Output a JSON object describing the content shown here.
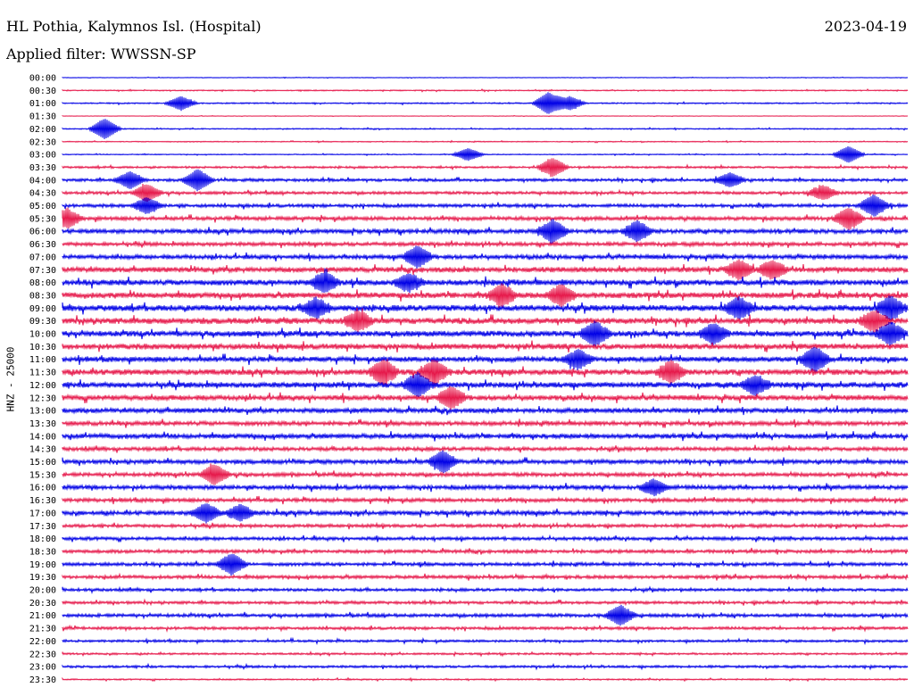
{
  "header": {
    "station": "HL Pothia, Kalymnos Isl. (Hospital)",
    "filter": "Applied filter: WWSSN-SP",
    "date": "2023-04-19"
  },
  "colors": {
    "odd_trace": "#0000e6",
    "even_trace": "#e6194b"
  },
  "chart_data": {
    "type": "line",
    "title": "HL Pothia, Kalymnos Isl. (Hospital)",
    "subtitle": "Applied filter: WWSSN-SP",
    "date": "2023-04-19",
    "ylabel": "HNZ - 25000",
    "xlabel": "",
    "grid": false,
    "row_labels": [
      "00:00",
      "00:30",
      "01:00",
      "01:30",
      "02:00",
      "02:30",
      "03:00",
      "03:30",
      "04:00",
      "04:30",
      "05:00",
      "05:30",
      "06:00",
      "06:30",
      "07:00",
      "07:30",
      "08:00",
      "08:30",
      "09:00",
      "09:30",
      "10:00",
      "10:30",
      "11:00",
      "11:30",
      "12:00",
      "12:30",
      "13:00",
      "13:30",
      "14:00",
      "14:30",
      "15:00",
      "15:30",
      "16:00",
      "16:30",
      "17:00",
      "17:30",
      "18:00",
      "18:30",
      "19:00",
      "19:30",
      "20:00",
      "20:30",
      "21:00",
      "21:30",
      "22:00",
      "22:30",
      "23:00",
      "23:30"
    ],
    "series_colors": [
      "#0000e6",
      "#e6194b"
    ],
    "row_noise": [
      0.06,
      0.12,
      0.14,
      0.05,
      0.12,
      0.1,
      0.1,
      0.22,
      0.3,
      0.3,
      0.35,
      0.4,
      0.45,
      0.4,
      0.45,
      0.55,
      0.6,
      0.6,
      0.65,
      0.65,
      0.6,
      0.6,
      0.55,
      0.6,
      0.6,
      0.55,
      0.5,
      0.45,
      0.5,
      0.4,
      0.45,
      0.4,
      0.45,
      0.4,
      0.45,
      0.35,
      0.35,
      0.35,
      0.35,
      0.35,
      0.3,
      0.3,
      0.35,
      0.3,
      0.25,
      0.2,
      0.25,
      0.15
    ],
    "events": [
      {
        "row": 2,
        "x": 0.14,
        "amp": 1.0
      },
      {
        "row": 2,
        "x": 0.575,
        "amp": 1.6
      },
      {
        "row": 2,
        "x": 0.6,
        "amp": 1.0
      },
      {
        "row": 4,
        "x": 0.05,
        "amp": 1.5
      },
      {
        "row": 6,
        "x": 0.48,
        "amp": 0.9
      },
      {
        "row": 6,
        "x": 0.93,
        "amp": 1.2
      },
      {
        "row": 7,
        "x": 0.58,
        "amp": 1.3
      },
      {
        "row": 8,
        "x": 0.08,
        "amp": 1.2
      },
      {
        "row": 8,
        "x": 0.16,
        "amp": 1.5
      },
      {
        "row": 8,
        "x": 0.79,
        "amp": 1.0
      },
      {
        "row": 9,
        "x": 0.1,
        "amp": 1.2
      },
      {
        "row": 9,
        "x": 0.9,
        "amp": 1.0
      },
      {
        "row": 10,
        "x": 0.1,
        "amp": 1.1
      },
      {
        "row": 10,
        "x": 0.96,
        "amp": 1.5
      },
      {
        "row": 11,
        "x": 0.005,
        "amp": 1.3
      },
      {
        "row": 11,
        "x": 0.93,
        "amp": 1.5
      },
      {
        "row": 12,
        "x": 0.58,
        "amp": 1.6
      },
      {
        "row": 12,
        "x": 0.68,
        "amp": 1.4
      },
      {
        "row": 14,
        "x": 0.42,
        "amp": 1.5
      },
      {
        "row": 15,
        "x": 0.8,
        "amp": 1.3
      },
      {
        "row": 15,
        "x": 0.84,
        "amp": 1.3
      },
      {
        "row": 16,
        "x": 0.31,
        "amp": 1.4
      },
      {
        "row": 16,
        "x": 0.41,
        "amp": 1.2
      },
      {
        "row": 17,
        "x": 0.52,
        "amp": 1.5
      },
      {
        "row": 17,
        "x": 0.59,
        "amp": 1.4
      },
      {
        "row": 18,
        "x": 0.3,
        "amp": 1.3
      },
      {
        "row": 18,
        "x": 0.8,
        "amp": 1.4
      },
      {
        "row": 18,
        "x": 0.98,
        "amp": 1.6
      },
      {
        "row": 19,
        "x": 0.35,
        "amp": 1.3
      },
      {
        "row": 19,
        "x": 0.96,
        "amp": 1.4
      },
      {
        "row": 20,
        "x": 0.63,
        "amp": 1.6
      },
      {
        "row": 20,
        "x": 0.77,
        "amp": 1.4
      },
      {
        "row": 20,
        "x": 0.98,
        "amp": 1.5
      },
      {
        "row": 22,
        "x": 0.61,
        "amp": 1.3
      },
      {
        "row": 22,
        "x": 0.89,
        "amp": 1.7
      },
      {
        "row": 23,
        "x": 0.38,
        "amp": 1.7
      },
      {
        "row": 23,
        "x": 0.44,
        "amp": 1.6
      },
      {
        "row": 23,
        "x": 0.72,
        "amp": 1.5
      },
      {
        "row": 24,
        "x": 0.42,
        "amp": 1.6
      },
      {
        "row": 24,
        "x": 0.82,
        "amp": 1.3
      },
      {
        "row": 25,
        "x": 0.46,
        "amp": 1.5
      },
      {
        "row": 30,
        "x": 0.45,
        "amp": 1.5
      },
      {
        "row": 31,
        "x": 0.18,
        "amp": 1.4
      },
      {
        "row": 32,
        "x": 0.7,
        "amp": 1.1
      },
      {
        "row": 34,
        "x": 0.17,
        "amp": 1.3
      },
      {
        "row": 34,
        "x": 0.21,
        "amp": 1.1
      },
      {
        "row": 38,
        "x": 0.2,
        "amp": 1.5
      },
      {
        "row": 42,
        "x": 0.66,
        "amp": 1.4
      }
    ]
  }
}
